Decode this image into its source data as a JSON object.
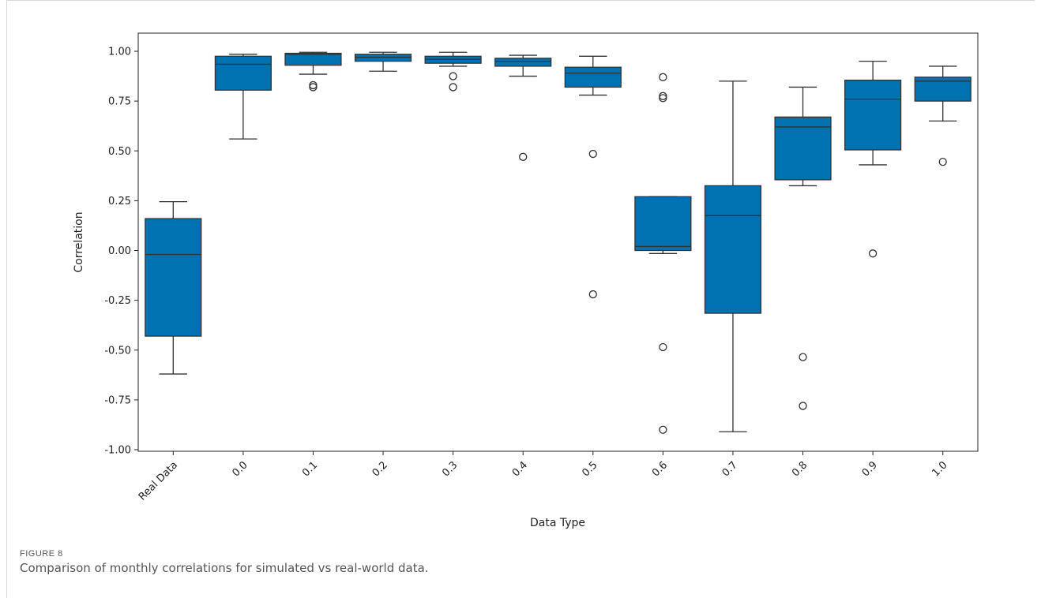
{
  "figure": {
    "label": "FIGURE 8",
    "caption": "Comparison of monthly correlations for simulated vs real-world data."
  },
  "chart_data": {
    "type": "box",
    "xlabel": "Data Type",
    "ylabel": "Correlation",
    "ylim": [
      -1.0,
      1.0
    ],
    "yticks": [
      "-1.00",
      "-0.75",
      "-0.50",
      "-0.25",
      "0.00",
      "0.25",
      "0.50",
      "0.75",
      "1.00"
    ],
    "grid": false,
    "box_color": "#0072b2",
    "categories": [
      "Real Data",
      "0.0",
      "0.1",
      "0.2",
      "0.3",
      "0.4",
      "0.5",
      "0.6",
      "0.7",
      "0.8",
      "0.9",
      "1.0"
    ],
    "boxes": [
      {
        "whisker_low": -0.62,
        "q1": -0.43,
        "median": -0.02,
        "q3": 0.16,
        "whisker_high": 0.245,
        "outliers": []
      },
      {
        "whisker_low": 0.56,
        "q1": 0.805,
        "median": 0.935,
        "q3": 0.975,
        "whisker_high": 0.985,
        "outliers": []
      },
      {
        "whisker_low": 0.885,
        "q1": 0.93,
        "median": 0.985,
        "q3": 0.99,
        "whisker_high": 0.995,
        "outliers": [
          0.82,
          0.83
        ]
      },
      {
        "whisker_low": 0.9,
        "q1": 0.95,
        "median": 0.97,
        "q3": 0.985,
        "whisker_high": 0.995,
        "outliers": []
      },
      {
        "whisker_low": 0.925,
        "q1": 0.94,
        "median": 0.96,
        "q3": 0.975,
        "whisker_high": 0.995,
        "outliers": [
          0.875,
          0.82
        ]
      },
      {
        "whisker_low": 0.875,
        "q1": 0.925,
        "median": 0.95,
        "q3": 0.965,
        "whisker_high": 0.98,
        "outliers": [
          0.47
        ]
      },
      {
        "whisker_low": 0.78,
        "q1": 0.82,
        "median": 0.89,
        "q3": 0.92,
        "whisker_high": 0.975,
        "outliers": [
          0.485,
          -0.22
        ]
      },
      {
        "whisker_low": -0.015,
        "q1": 0.0,
        "median": 0.02,
        "q3": 0.27,
        "whisker_high": 0.27,
        "outliers": [
          0.87,
          0.775,
          0.765,
          -0.485,
          -0.9
        ]
      },
      {
        "whisker_low": -0.91,
        "q1": -0.315,
        "median": 0.175,
        "q3": 0.325,
        "whisker_high": 0.85,
        "outliers": []
      },
      {
        "whisker_low": 0.325,
        "q1": 0.355,
        "median": 0.62,
        "q3": 0.67,
        "whisker_high": 0.82,
        "outliers": [
          -0.535,
          -0.78
        ]
      },
      {
        "whisker_low": 0.43,
        "q1": 0.505,
        "median": 0.76,
        "q3": 0.855,
        "whisker_high": 0.95,
        "outliers": [
          -0.015
        ]
      },
      {
        "whisker_low": 0.65,
        "q1": 0.75,
        "median": 0.85,
        "q3": 0.87,
        "whisker_high": 0.925,
        "outliers": [
          0.445
        ]
      }
    ]
  }
}
